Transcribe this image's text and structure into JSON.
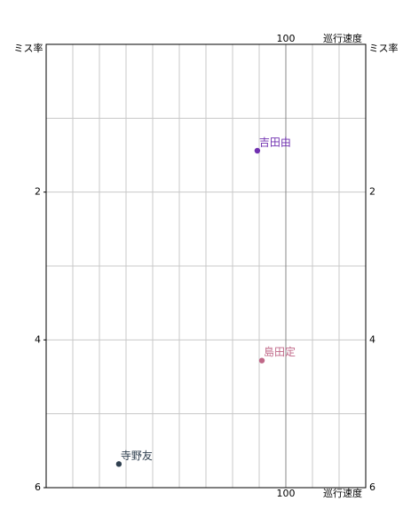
{
  "chart_data": {
    "type": "scatter",
    "x_label": "巡行速度",
    "y_label": "ミス率",
    "xlim": [
      10,
      130
    ],
    "ylim": [
      0,
      6
    ],
    "y_inverted": true,
    "xticks": [
      100
    ],
    "yticks": [
      2,
      4,
      6
    ],
    "x_grid_interval": 10,
    "y_grid_interval": 1,
    "grid": true,
    "series": [
      {
        "name": "吉田由",
        "color": "#7030b0",
        "x": [
          89.3
        ],
        "values": [
          1.44
        ]
      },
      {
        "name": "島田定",
        "color": "#c06888",
        "x": [
          91
        ],
        "values": [
          4.28
        ]
      },
      {
        "name": "寺野友",
        "color": "#304050",
        "x": [
          37.3
        ],
        "values": [
          5.68
        ]
      }
    ]
  }
}
